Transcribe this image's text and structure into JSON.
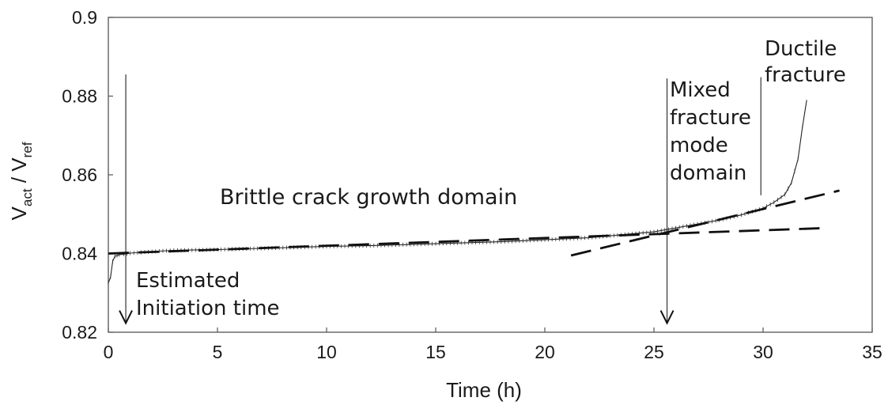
{
  "chart_data": {
    "type": "line",
    "title": "",
    "xlabel": "Time (h)",
    "ylabel": {
      "main": "V",
      "sub1": "act",
      "sep": " / V",
      "sub2": "ref"
    },
    "xlim": [
      0,
      35
    ],
    "ylim": [
      0.82,
      0.9
    ],
    "xticks": [
      "0",
      "5",
      "10",
      "15",
      "20",
      "25",
      "30",
      "35"
    ],
    "yticks": [
      "0.82",
      "0.84",
      "0.86",
      "0.88",
      "0.9"
    ],
    "grid": false,
    "series": [
      {
        "x": [
          0,
          0.1,
          0.2,
          0.3,
          0.4,
          0.5,
          0.7,
          1,
          2,
          3,
          5,
          7,
          10,
          12,
          15,
          18,
          20,
          22,
          23,
          24,
          25,
          26,
          27,
          28,
          29,
          30,
          30.5,
          31,
          31.3,
          31.6,
          31.8,
          32
        ],
        "y": [
          0.8325,
          0.834,
          0.838,
          0.8393,
          0.8395,
          0.8397,
          0.8398,
          0.8401,
          0.8405,
          0.8408,
          0.841,
          0.8413,
          0.8418,
          0.842,
          0.8425,
          0.843,
          0.8435,
          0.844,
          0.8445,
          0.845,
          0.8455,
          0.8465,
          0.8475,
          0.8485,
          0.8498,
          0.8515,
          0.853,
          0.855,
          0.858,
          0.864,
          0.872,
          0.879
        ]
      }
    ],
    "trend_lines": [
      {
        "x": [
          0,
          33
        ],
        "y": [
          0.84,
          0.8465
        ]
      },
      {
        "x": [
          21.2,
          33.5
        ],
        "y": [
          0.8395,
          0.856
        ]
      }
    ],
    "vertical_markers": [
      {
        "x": 0.8,
        "y_top": 0.8855,
        "y_bottom": 0.8223,
        "arrow": true
      },
      {
        "x": 25.6,
        "y_top": 0.8845,
        "y_bottom": 0.8223,
        "arrow": true
      },
      {
        "x": 29.9,
        "y_top": 0.8848,
        "y_bottom": 0.8548,
        "arrow": false
      }
    ],
    "annotations": [
      {
        "id": "brittle",
        "lines": [
          "Brittle crack growth domain"
        ]
      },
      {
        "id": "initiation",
        "lines": [
          "Estimated",
          "Initiation time"
        ]
      },
      {
        "id": "mixed",
        "lines": [
          "Mixed",
          "fracture",
          "mode",
          "domain"
        ]
      },
      {
        "id": "ductile",
        "lines": [
          "Ductile",
          "fracture"
        ]
      }
    ]
  }
}
